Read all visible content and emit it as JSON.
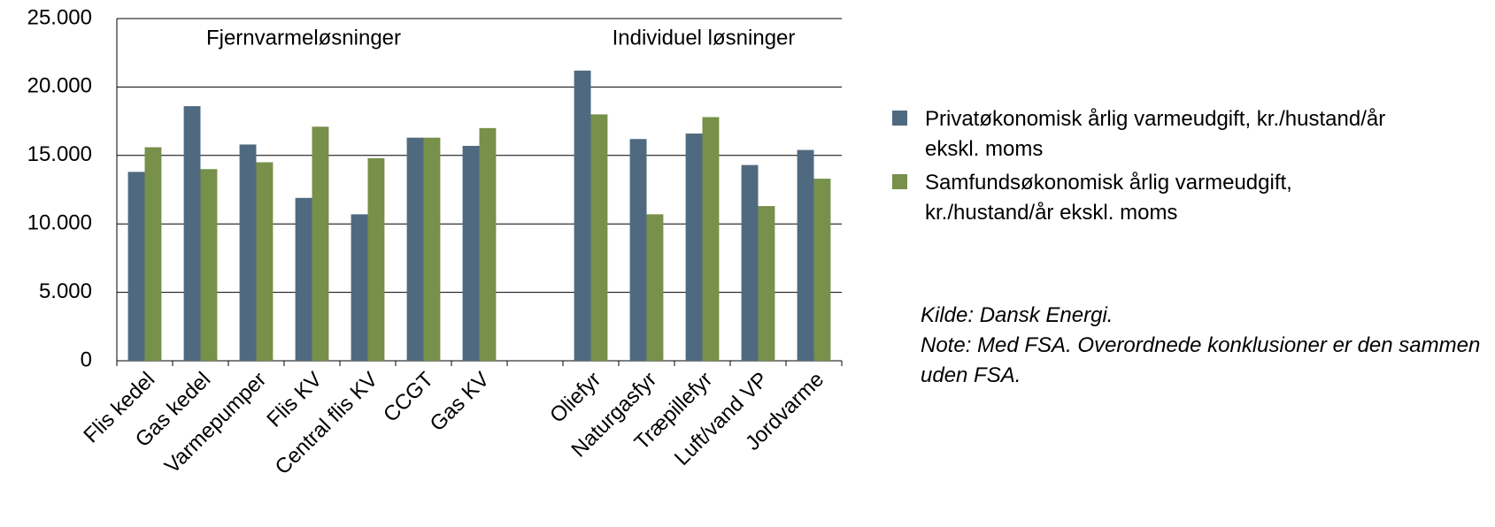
{
  "chart_data": {
    "type": "bar",
    "categories": [
      "Flis kedel",
      "Gas kedel",
      "Varmepumper",
      "Flis KV",
      "Central flis KV",
      "CCGT",
      "Gas KV",
      null,
      "Oliefyr",
      "Naturgasfyr",
      "Træpillefyr",
      "Luft/vand VP",
      "Jordvarme"
    ],
    "series": [
      {
        "name": "Privatøkonomisk årlig varmeudgift, kr./hustand/år ekskl. moms",
        "color": "#4f6a80",
        "values": [
          13800,
          18600,
          15800,
          11900,
          10700,
          16300,
          15700,
          null,
          21200,
          16200,
          16600,
          14300,
          15400
        ]
      },
      {
        "name": "Samfundsøkonomisk årlig varmeudgift, kr./hustand/år ekskl. moms",
        "color": "#77904a",
        "values": [
          15600,
          14000,
          14500,
          17100,
          14800,
          16300,
          17000,
          null,
          18000,
          10700,
          17800,
          11300,
          13300
        ]
      }
    ],
    "ylim": [
      0,
      25000
    ],
    "yticks": [
      0,
      {
        "value": 5000,
        "label": "5.000"
      },
      {
        "value": 10000,
        "label": "10.000"
      },
      {
        "value": 15000,
        "label": "15.000"
      },
      {
        "value": 20000,
        "label": "20.000"
      },
      {
        "value": 25000,
        "label": "25.000"
      }
    ],
    "grid": true,
    "annotations": [
      "Fjernvarmeløsninger",
      "Individuel løsninger"
    ],
    "notes": [
      "Kilde: Dansk Energi.",
      "Note: Med FSA. Overordnede konklusioner er den sammen uden FSA."
    ]
  }
}
